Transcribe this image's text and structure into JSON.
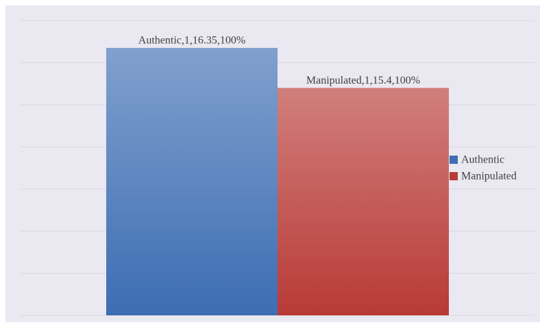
{
  "chart_data": {
    "type": "bar",
    "categories": [
      "1"
    ],
    "series": [
      {
        "name": "Authentic",
        "color": "#3d6db3",
        "values": [
          16.35
        ],
        "value_labels": [
          "Authentic,1,16.35,100%"
        ]
      },
      {
        "name": "Manipulated",
        "color": "#b83a36",
        "values": [
          15.4
        ],
        "value_labels": [
          "Manipulated,1,15.4,100%"
        ]
      }
    ],
    "ylim": [
      10,
      17
    ],
    "yticks": [
      10,
      11,
      12,
      13,
      14,
      15,
      16,
      17
    ],
    "grid": true,
    "legend": "right"
  }
}
